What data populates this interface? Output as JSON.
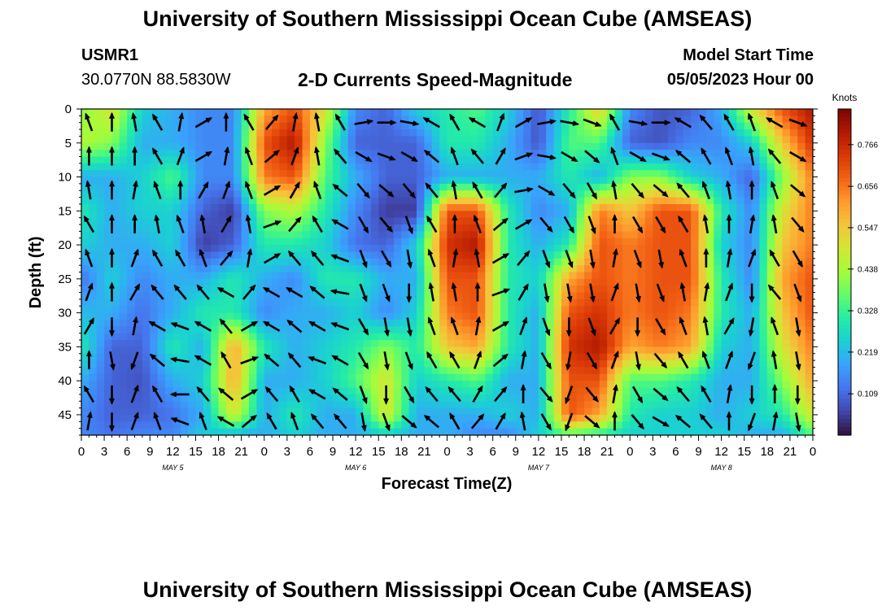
{
  "titles": {
    "top": "University of Southern Mississippi Ocean Cube (AMSEAS)",
    "bottom": "University of Southern Mississippi Ocean Cube (AMSEAS)"
  },
  "header": {
    "station": "USMR1",
    "coords": "30.0770N  88.5830W",
    "subtitle": "2-D Currents Speed-Magnitude",
    "model_start_label": "Model Start Time",
    "model_start_value": "05/05/2023 Hour 00"
  },
  "chart_data": {
    "type": "heatmap",
    "xlabel": "Forecast Time(Z)",
    "ylabel": "Depth (ft)",
    "x_tick_labels": [
      "0",
      "3",
      "6",
      "9",
      "12",
      "15",
      "18",
      "21",
      "0",
      "3",
      "6",
      "9",
      "12",
      "15",
      "18",
      "21",
      "0",
      "3",
      "6",
      "9",
      "12",
      "15",
      "18",
      "21",
      "0",
      "3",
      "6",
      "9",
      "12",
      "15",
      "18",
      "21",
      "0"
    ],
    "day_labels": [
      "MAY 5",
      "MAY 6",
      "MAY 7",
      "MAY 8"
    ],
    "y_tick_labels": [
      "0",
      "5",
      "10",
      "15",
      "20",
      "25",
      "30",
      "35",
      "40",
      "45"
    ],
    "y_ticks": [
      0,
      5,
      10,
      15,
      20,
      25,
      30,
      35,
      40,
      45
    ],
    "ylim": [
      0,
      48
    ],
    "xlim_hours": [
      0,
      96
    ],
    "colorbar": {
      "unit": "Knots",
      "tick_labels": [
        "0.766",
        "0.656",
        "0.547",
        "0.438",
        "0.328",
        "0.219",
        "0.109"
      ],
      "tick_values": [
        0.766,
        0.656,
        0.547,
        0.438,
        0.328,
        0.219,
        0.109
      ],
      "range": [
        0.0,
        0.86
      ],
      "colors": [
        "#30123b",
        "#4145ab",
        "#4675ed",
        "#39a2fc",
        "#1bcfd4",
        "#24eca6",
        "#61fc6c",
        "#a4fc3b",
        "#d1e834",
        "#f3c63a",
        "#fe9b2d",
        "#f36315",
        "#d93806",
        "#b11901",
        "#7a0402"
      ]
    },
    "speed_columns_hours": [
      0,
      4,
      8,
      12,
      16,
      20,
      24,
      28,
      32,
      36,
      40,
      44,
      48,
      52,
      56,
      60,
      64,
      68,
      72,
      76,
      80,
      84,
      88,
      92,
      96
    ],
    "speed_rows_depth_ft": [
      0,
      5,
      10,
      15,
      20,
      25,
      30,
      35,
      40,
      45,
      48
    ],
    "speed_knots": [
      [
        0.4,
        0.45,
        0.2,
        0.3,
        0.25,
        0.12,
        0.22,
        0.3,
        0.2,
        0.15,
        0.15
      ],
      [
        0.5,
        0.4,
        0.2,
        0.2,
        0.2,
        0.25,
        0.2,
        0.1,
        0.1,
        0.1,
        0.12
      ],
      [
        0.25,
        0.2,
        0.25,
        0.25,
        0.2,
        0.15,
        0.12,
        0.1,
        0.08,
        0.1,
        0.15
      ],
      [
        0.2,
        0.2,
        0.35,
        0.25,
        0.25,
        0.2,
        0.2,
        0.3,
        0.2,
        0.12,
        0.15
      ],
      [
        0.15,
        0.15,
        0.15,
        0.1,
        0.05,
        0.2,
        0.3,
        0.2,
        0.25,
        0.2,
        0.25
      ],
      [
        0.15,
        0.15,
        0.15,
        0.05,
        0.1,
        0.3,
        0.3,
        0.6,
        0.6,
        0.5,
        0.2
      ],
      [
        0.6,
        0.7,
        0.65,
        0.4,
        0.3,
        0.2,
        0.15,
        0.3,
        0.2,
        0.2,
        0.2
      ],
      [
        0.7,
        0.8,
        0.7,
        0.45,
        0.3,
        0.15,
        0.2,
        0.2,
        0.2,
        0.3,
        0.25
      ],
      [
        0.5,
        0.4,
        0.35,
        0.3,
        0.25,
        0.3,
        0.2,
        0.25,
        0.25,
        0.2,
        0.2
      ],
      [
        0.15,
        0.1,
        0.2,
        0.15,
        0.12,
        0.3,
        0.25,
        0.3,
        0.35,
        0.2,
        0.2
      ],
      [
        0.1,
        0.1,
        0.1,
        0.05,
        0.1,
        0.2,
        0.15,
        0.4,
        0.5,
        0.5,
        0.25
      ],
      [
        0.25,
        0.1,
        0.1,
        0.05,
        0.25,
        0.2,
        0.25,
        0.3,
        0.25,
        0.2,
        0.2
      ],
      [
        0.3,
        0.3,
        0.2,
        0.7,
        0.75,
        0.7,
        0.65,
        0.55,
        0.3,
        0.2,
        0.2
      ],
      [
        0.35,
        0.3,
        0.2,
        0.7,
        0.8,
        0.7,
        0.7,
        0.6,
        0.35,
        0.2,
        0.15
      ],
      [
        0.25,
        0.2,
        0.2,
        0.3,
        0.3,
        0.3,
        0.3,
        0.3,
        0.2,
        0.25,
        0.15
      ],
      [
        0.08,
        0.08,
        0.2,
        0.15,
        0.2,
        0.25,
        0.2,
        0.2,
        0.2,
        0.2,
        0.25
      ],
      [
        0.3,
        0.35,
        0.3,
        0.2,
        0.3,
        0.6,
        0.7,
        0.75,
        0.7,
        0.7,
        0.35
      ],
      [
        0.55,
        0.35,
        0.2,
        0.65,
        0.7,
        0.7,
        0.75,
        0.8,
        0.7,
        0.6,
        0.3
      ],
      [
        0.15,
        0.1,
        0.4,
        0.55,
        0.65,
        0.65,
        0.65,
        0.6,
        0.35,
        0.3,
        0.25
      ],
      [
        0.08,
        0.08,
        0.4,
        0.7,
        0.7,
        0.7,
        0.7,
        0.65,
        0.35,
        0.25,
        0.25
      ],
      [
        0.1,
        0.15,
        0.25,
        0.7,
        0.7,
        0.7,
        0.65,
        0.6,
        0.3,
        0.25,
        0.25
      ],
      [
        0.2,
        0.15,
        0.2,
        0.3,
        0.25,
        0.3,
        0.3,
        0.25,
        0.2,
        0.2,
        0.25
      ],
      [
        0.5,
        0.25,
        0.1,
        0.15,
        0.15,
        0.15,
        0.2,
        0.2,
        0.2,
        0.25,
        0.2
      ],
      [
        0.7,
        0.55,
        0.4,
        0.5,
        0.55,
        0.6,
        0.55,
        0.5,
        0.4,
        0.3,
        0.2
      ],
      [
        0.8,
        0.75,
        0.65,
        0.65,
        0.65,
        0.7,
        0.7,
        0.65,
        0.6,
        0.5,
        0.35
      ]
    ],
    "vector_columns_hours": [
      1,
      4,
      7,
      10,
      13,
      16,
      19,
      22,
      25,
      28,
      31,
      34,
      37,
      40,
      43,
      46,
      49,
      52,
      55,
      58,
      61,
      64,
      67,
      70,
      73,
      76,
      79,
      82,
      85,
      88,
      91,
      94
    ],
    "vector_rows_depth_ft": [
      2,
      7,
      12,
      17,
      22,
      27,
      32,
      37,
      42,
      46
    ],
    "vector_direction_deg": [
      [
        340,
        0,
        350,
        330,
        340,
        20,
        30,
        0,
        330,
        10
      ],
      [
        0,
        0,
        0,
        0,
        0,
        0,
        180,
        170,
        180,
        180
      ],
      [
        350,
        0,
        10,
        0,
        20,
        30,
        10,
        200,
        20,
        20
      ],
      [
        330,
        330,
        340,
        350,
        330,
        320,
        300,
        310,
        330,
        340
      ],
      [
        10,
        20,
        0,
        340,
        330,
        320,
        290,
        280,
        270,
        290
      ],
      [
        60,
        60,
        30,
        350,
        340,
        320,
        300,
        300,
        320,
        340
      ],
      [
        0,
        10,
        20,
        30,
        40,
        300,
        320,
        330,
        310,
        300
      ],
      [
        330,
        340,
        340,
        350,
        10,
        40,
        60,
        70,
        60,
        50
      ],
      [
        40,
        50,
        60,
        70,
        60,
        300,
        300,
        310,
        320,
        330
      ],
      [
        10,
        20,
        30,
        40,
        320,
        300,
        310,
        320,
        330,
        340
      ],
      [
        350,
        350,
        340,
        330,
        320,
        310,
        300,
        290,
        300,
        320
      ],
      [
        330,
        320,
        310,
        300,
        290,
        280,
        290,
        300,
        310,
        320
      ],
      [
        80,
        120,
        140,
        150,
        160,
        160,
        150,
        150,
        160,
        170
      ],
      [
        90,
        110,
        130,
        140,
        150,
        160,
        170,
        170,
        180,
        160
      ],
      [
        100,
        120,
        140,
        160,
        170,
        180,
        170,
        160,
        150,
        130
      ],
      [
        300,
        310,
        320,
        330,
        340,
        350,
        340,
        330,
        320,
        310
      ],
      [
        330,
        340,
        350,
        0,
        10,
        350,
        340,
        330,
        320,
        330
      ],
      [
        300,
        320,
        330,
        340,
        350,
        0,
        10,
        20,
        30,
        40
      ],
      [
        20,
        30,
        40,
        50,
        60,
        70,
        60,
        50,
        40,
        30
      ],
      [
        60,
        70,
        80,
        60,
        40,
        30,
        20,
        10,
        0,
        350
      ],
      [
        80,
        100,
        120,
        140,
        160,
        170,
        160,
        150,
        140,
        150
      ],
      [
        100,
        120,
        140,
        150,
        160,
        170,
        180,
        190,
        200,
        200
      ],
      [
        110,
        130,
        150,
        160,
        170,
        170,
        160,
        150,
        140,
        130
      ],
      [
        330,
        340,
        350,
        0,
        10,
        20,
        30,
        20,
        10,
        0
      ],
      [
        100,
        120,
        140,
        150,
        160,
        170,
        180,
        170,
        150,
        140
      ],
      [
        90,
        110,
        130,
        150,
        170,
        160,
        150,
        140,
        130,
        120
      ],
      [
        300,
        310,
        320,
        330,
        340,
        350,
        340,
        330,
        320,
        310
      ],
      [
        320,
        330,
        340,
        350,
        0,
        10,
        350,
        340,
        330,
        320
      ],
      [
        330,
        340,
        350,
        0,
        10,
        20,
        30,
        20,
        10,
        0
      ],
      [
        340,
        350,
        0,
        10,
        20,
        180,
        190,
        200,
        180,
        200
      ],
      [
        300,
        320,
        340,
        350,
        330,
        320,
        340,
        350,
        0,
        10
      ],
      [
        110,
        120,
        130,
        140,
        150,
        160,
        170,
        170,
        180,
        170
      ]
    ]
  }
}
